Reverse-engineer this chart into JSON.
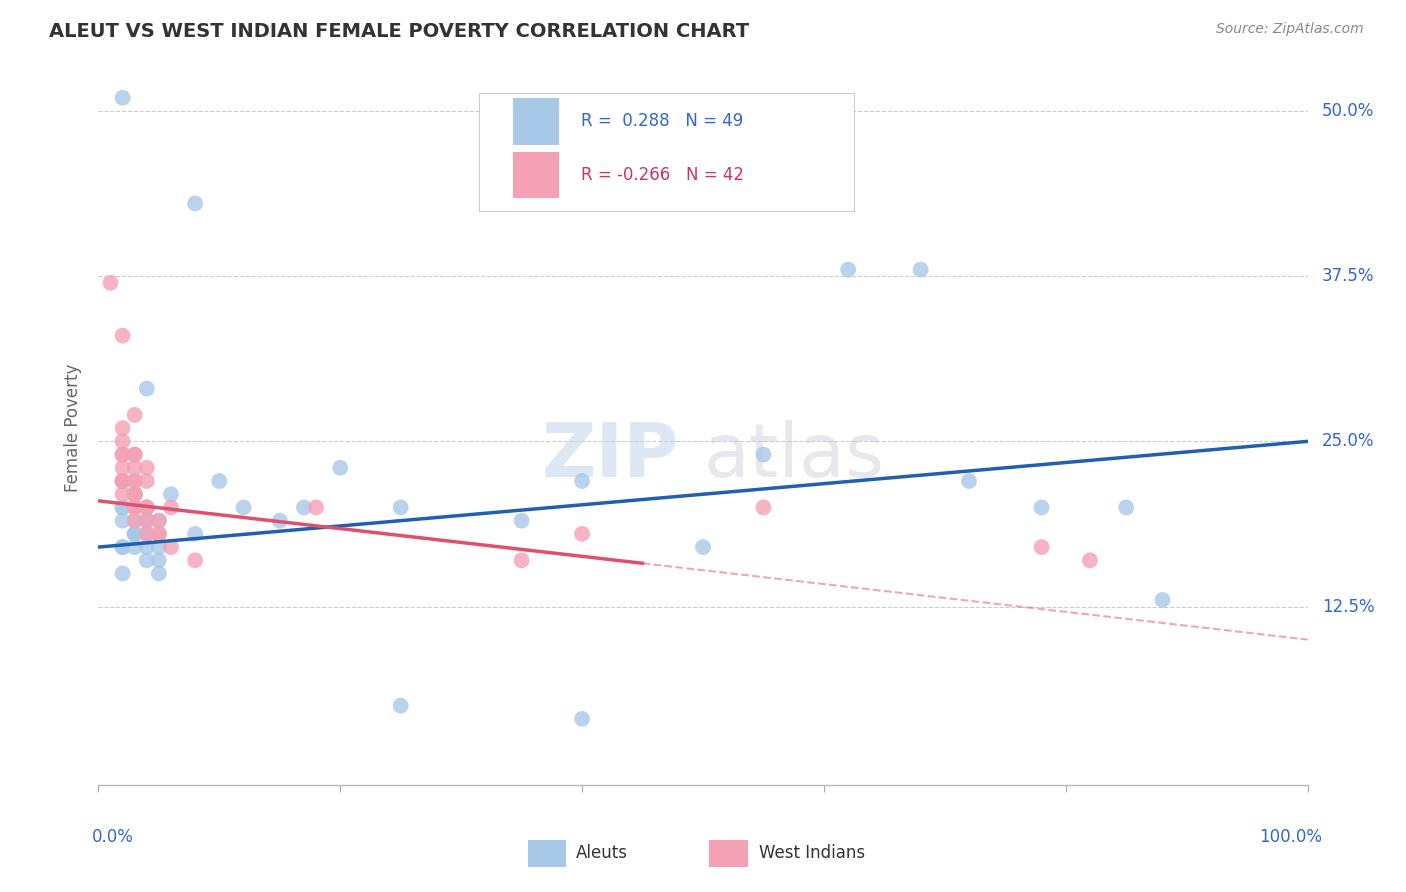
{
  "title": "ALEUT VS WEST INDIAN FEMALE POVERTY CORRELATION CHART",
  "source": "Source: ZipAtlas.com",
  "ylabel": "Female Poverty",
  "xmin": 0,
  "xmax": 100,
  "ymin": -1,
  "ymax": 53,
  "aleut_R": 0.288,
  "aleut_N": 49,
  "west_indian_R": -0.266,
  "west_indian_N": 42,
  "aleut_color": "#a8c8e8",
  "west_indian_color": "#f4a0b5",
  "aleut_line_color": "#2060b0",
  "west_indian_line_color": "#e0506a",
  "background_color": "#ffffff",
  "grid_color": "#cccccc",
  "ytick_color": "#3366cc",
  "title_color": "#333333",
  "source_color": "#888888",
  "ylabel_color": "#666666",
  "aleut_line_y0": 17.0,
  "aleut_line_y100": 25.0,
  "west_indian_line_y0": 20.5,
  "west_indian_line_y100": 10.0,
  "west_indian_solid_end": 45,
  "aleut_x": [
    2,
    8,
    4,
    2,
    3,
    4,
    5,
    3,
    4,
    2,
    3,
    2,
    4,
    3,
    2,
    3,
    4,
    5,
    2,
    3,
    4,
    3,
    2,
    4,
    5,
    2,
    3,
    4,
    5,
    6,
    8,
    10,
    12,
    15,
    17,
    20,
    25,
    35,
    40,
    50,
    55,
    62,
    68,
    72,
    78,
    85,
    88,
    25,
    40
  ],
  "aleut_y": [
    51,
    43,
    29,
    20,
    19,
    18,
    17,
    21,
    20,
    19,
    18,
    17,
    19,
    20,
    17,
    18,
    16,
    15,
    20,
    21,
    19,
    18,
    22,
    17,
    16,
    15,
    17,
    18,
    19,
    21,
    18,
    22,
    20,
    19,
    20,
    23,
    20,
    19,
    22,
    17,
    24,
    38,
    38,
    22,
    20,
    20,
    13,
    5,
    4
  ],
  "west_indian_x": [
    1,
    2,
    3,
    2,
    3,
    2,
    3,
    2,
    3,
    4,
    2,
    3,
    2,
    3,
    4,
    3,
    2,
    3,
    2,
    3,
    2,
    3,
    4,
    5,
    6,
    4,
    3,
    5,
    4,
    6,
    8,
    18,
    35,
    40,
    55,
    78,
    82,
    2,
    3,
    3,
    4,
    5
  ],
  "west_indian_y": [
    37,
    33,
    27,
    26,
    24,
    22,
    21,
    24,
    23,
    22,
    25,
    24,
    22,
    21,
    23,
    20,
    21,
    20,
    22,
    21,
    24,
    22,
    20,
    19,
    20,
    18,
    19,
    18,
    20,
    17,
    16,
    20,
    16,
    18,
    20,
    17,
    16,
    23,
    22,
    21,
    19,
    18
  ]
}
